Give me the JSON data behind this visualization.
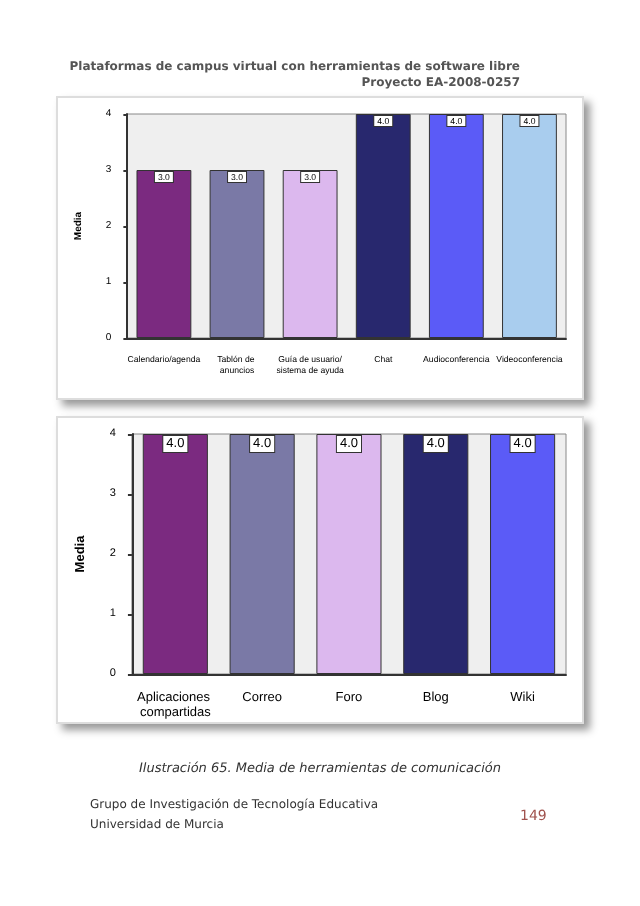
{
  "chart_data": [
    {
      "type": "bar",
      "ylabel": "Media",
      "categories": [
        "Calendario/agenda",
        "Tablón de anuncios",
        "Guía de usuario/sistema de ayuda",
        "Chat",
        "Audioconferencia",
        "Videoconferencia"
      ],
      "values": [
        3,
        3,
        3,
        4,
        4,
        4
      ],
      "colors": [
        "#7b2a80",
        "#7a79a6",
        "#dcb8ee",
        "#28286e",
        "#5b5bf7",
        "#a9cdee"
      ],
      "value_labels": [
        "3.0",
        "3.0",
        "3.0",
        "4.0",
        "4.0",
        "4.0"
      ],
      "ylim": [
        0,
        4
      ],
      "yticks": [
        0,
        1,
        2,
        3,
        4
      ],
      "grid": false,
      "annotations": [
        "Plataformas de campus virtual con herramientas de software libre",
        "Proyecto EA-2008-0257"
      ]
    },
    {
      "type": "bar",
      "ylabel": "Media",
      "categories": [
        "Aplicaciones compartidas",
        "Correo",
        "Foro",
        "Blog",
        "Wiki"
      ],
      "values": [
        4,
        4,
        4,
        4,
        4
      ],
      "colors": [
        "#7b2a80",
        "#7a79a6",
        "#dcb8ee",
        "#28286e",
        "#5b5bf7"
      ],
      "value_labels": [
        "4.0",
        "4.0",
        "4.0",
        "4.0",
        "4.0"
      ],
      "ylim": [
        0,
        4
      ],
      "yticks": [
        0,
        1,
        2,
        3,
        4
      ],
      "grid": false,
      "annotations": [
        "Ilustración 65. Media de herramientas de comunicación",
        "Grupo de Investigación de Tecnología Educativa",
        "Universidad de Murcia",
        "149"
      ]
    }
  ]
}
